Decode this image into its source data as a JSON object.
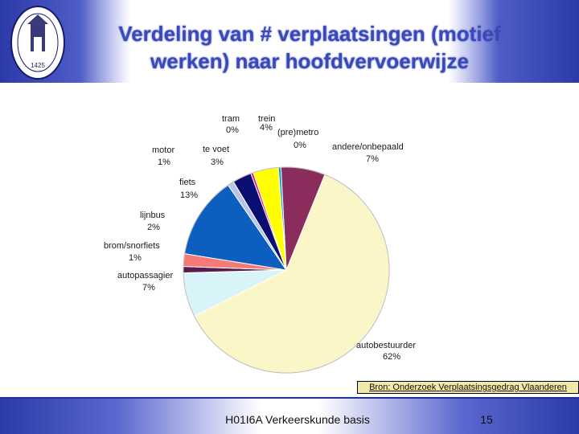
{
  "slide": {
    "title_line1": "Verdeling van # verplaatsingen (motief",
    "title_line2": "werken) naar hoofdvervoerwijze",
    "source": "Bron: Onderzoek Verplaatsingsgedrag Vlaanderen",
    "course": "H01I6A Verkeerskunde basis",
    "page": "15",
    "seal_text": "1425"
  },
  "colors": {
    "banner_blue": "#2b3aa8",
    "title": "#3a49b8"
  },
  "chart_data": {
    "type": "pie",
    "title": "",
    "slices": [
      {
        "label": "andere/onbepaald",
        "pct": "7%",
        "value": 7,
        "color": "#8b2d5c"
      },
      {
        "label": "autobestuurder",
        "pct": "62%",
        "value": 62,
        "color": "#fbf6c8"
      },
      {
        "label": "autopassagier",
        "pct": "7%",
        "value": 7,
        "color": "#d8f4f8"
      },
      {
        "label": "brom/snorfiets",
        "pct": "1%",
        "value": 1,
        "color": "#5b1a4a"
      },
      {
        "label": "lijnbus",
        "pct": "2%",
        "value": 2,
        "color": "#f47a78"
      },
      {
        "label": "fiets",
        "pct": "13%",
        "value": 13,
        "color": "#0d5fbf"
      },
      {
        "label": "motor",
        "pct": "1%",
        "value": 1,
        "color": "#b8c4e8"
      },
      {
        "label": "te voet",
        "pct": "3%",
        "value": 3,
        "color": "#0a0e70"
      },
      {
        "label": "tram",
        "pct": "0%",
        "value": 0.4,
        "color": "#e8148c"
      },
      {
        "label": "trein",
        "pct": "4%",
        "value": 4,
        "color": "#ffff00"
      },
      {
        "label": "(pre)metro",
        "pct": "0%",
        "value": 0.4,
        "color": "#00a0c8"
      }
    ],
    "start_angle_deg": -3
  }
}
